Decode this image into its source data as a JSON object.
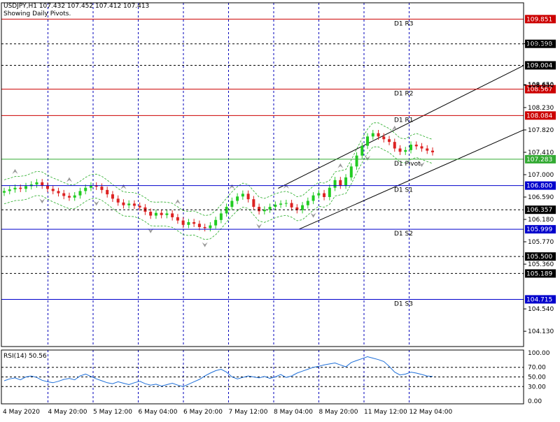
{
  "header": {
    "symbol_line": "USDJPY,H1  107.432 107.452 107.412 107.413",
    "subtitle": "Showing Daily Pivots."
  },
  "chart_data": [
    {
      "type": "candlestick",
      "symbol": "USDJPY",
      "timeframe": "H1",
      "ohlc_last": {
        "open": 107.432,
        "high": 107.452,
        "low": 107.412,
        "close": 107.413
      },
      "ylim": [
        103.85,
        110.15
      ],
      "price_ticks": [
        "109.400",
        "108.650",
        "108.640",
        "108.230",
        "107.820",
        "107.410",
        "107.000",
        "106.590",
        "106.180",
        "105.770",
        "105.360",
        "104.540",
        "104.130"
      ],
      "x_ticks": [
        "4 May 2020",
        "4 May 20:00",
        "5 May 12:00",
        "6 May 04:00",
        "6 May 20:00",
        "7 May 12:00",
        "8 May 04:00",
        "8 May 20:00",
        "11 May 12:00",
        "12 May 04:00"
      ],
      "pivot_levels": [
        {
          "name": "D1 R3",
          "value": 109.851,
          "label": "109.851",
          "color": "#cc0000"
        },
        {
          "name": "D1 R2",
          "value": 108.567,
          "label": "108.567",
          "color": "#cc0000"
        },
        {
          "name": "D1 R1",
          "value": 108.084,
          "label": "108.084",
          "color": "#cc0000"
        },
        {
          "name": "D1 Pivot",
          "value": 107.283,
          "label": "107.283",
          "color": "#33aa33"
        },
        {
          "name": "D1 S1",
          "value": 106.8,
          "label": "106.800",
          "color": "#0000cc"
        },
        {
          "name": "D1 S2",
          "value": 105.999,
          "label": "105.999",
          "color": "#0000cc"
        },
        {
          "name": "D1 S3",
          "value": 104.715,
          "label": "104.715",
          "color": "#0000cc"
        }
      ],
      "dashed_levels": [
        {
          "value": 109.398,
          "label": "109.398"
        },
        {
          "value": 109.004,
          "label": "109.004"
        },
        {
          "value": 106.357,
          "label": "106.357"
        },
        {
          "value": 105.5,
          "label": "105.500"
        },
        {
          "value": 105.189,
          "label": "105.189"
        }
      ],
      "trend_channel": {
        "upper": [
          {
            "x": 0.53,
            "y": 106.75
          },
          {
            "x": 1.0,
            "y": 109.0
          }
        ],
        "lower": [
          {
            "x": 0.57,
            "y": 106.0
          },
          {
            "x": 1.0,
            "y": 107.82
          }
        ]
      },
      "close_series": [
        106.7,
        106.73,
        106.76,
        106.74,
        106.79,
        106.82,
        106.86,
        106.8,
        106.74,
        106.7,
        106.66,
        106.61,
        106.58,
        106.62,
        106.7,
        106.76,
        106.8,
        106.78,
        106.72,
        106.64,
        106.56,
        106.49,
        106.44,
        106.47,
        106.43,
        106.4,
        106.32,
        106.25,
        106.3,
        106.26,
        106.29,
        106.22,
        106.16,
        106.08,
        106.13,
        106.1,
        106.04,
        106.02,
        106.07,
        106.17,
        106.29,
        106.41,
        106.52,
        106.6,
        106.65,
        106.55,
        106.41,
        106.33,
        106.36,
        106.41,
        106.45,
        106.47,
        106.48,
        106.4,
        106.35,
        106.44,
        106.52,
        106.62,
        106.66,
        106.59,
        106.76,
        106.9,
        106.8,
        106.95,
        107.15,
        107.35,
        107.53,
        107.7,
        107.76,
        107.7,
        107.65,
        107.6,
        107.48,
        107.42,
        107.45,
        107.55,
        107.52,
        107.48,
        107.44,
        107.41
      ],
      "rsi": {
        "label": "RSI(14) 50.56",
        "levels": [
          "100.00",
          "70.00",
          "50.00",
          "30.00",
          "0.00"
        ],
        "ylim": [
          0,
          100
        ],
        "values": [
          42,
          46,
          48,
          44,
          50,
          52,
          49,
          43,
          40,
          38,
          41,
          45,
          47,
          44,
          52,
          56,
          51,
          46,
          42,
          38,
          36,
          40,
          37,
          34,
          38,
          41,
          36,
          33,
          35,
          31,
          34,
          37,
          33,
          30,
          35,
          40,
          45,
          52,
          58,
          63,
          66,
          60,
          50,
          46,
          49,
          52,
          50,
          48,
          51,
          47,
          50,
          55,
          49,
          52,
          58,
          62,
          66,
          70,
          72,
          75,
          77,
          79,
          75,
          71,
          80,
          84,
          88,
          92,
          89,
          86,
          82,
          72,
          60,
          54,
          56,
          60,
          58,
          55,
          52,
          51
        ]
      }
    }
  ]
}
